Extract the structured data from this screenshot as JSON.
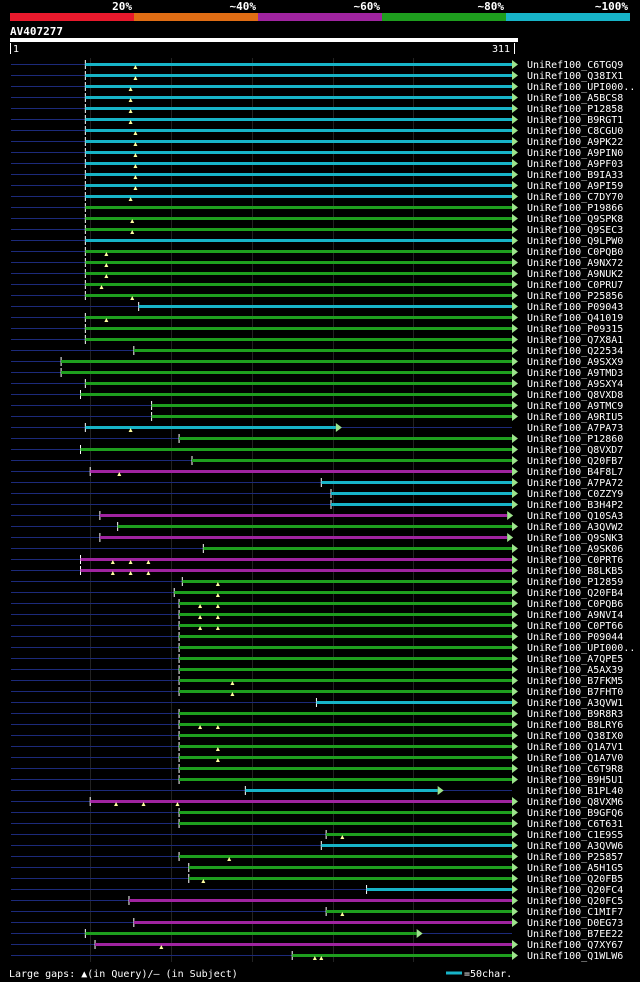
{
  "chart_data": {
    "type": "alignment-overview",
    "query_id": "AV407277",
    "query_start": "1",
    "query_end": "311",
    "query_length": 311,
    "legend": [
      {
        "label": "20%",
        "color": "#e8192c"
      },
      {
        "label": "~40%",
        "color": "#e06d14"
      },
      {
        "label": "~60%",
        "color": "#a024a0"
      },
      {
        "label": "~80%",
        "color": "#1e9e1e"
      },
      {
        "label": "~100%",
        "color": "#17b4c8"
      }
    ],
    "colors": {
      "background": "#000000",
      "text": "#ffffff",
      "subject_line": "#1c2a7a",
      "grid": "#222222",
      "arrow": "#9de48c",
      "gap": "#ffffa0",
      "scale_fill": "#ffffff"
    },
    "footer": {
      "text": "Large gaps: ▲(in Query)/— (in Subject)",
      "scale_label": "=50char.",
      "scale_color": "#17b4c8"
    },
    "hits": [
      {
        "id": "UniRef100_C6TGQ9",
        "start": 47,
        "end": 311,
        "color": "#17b4c8",
        "gaps": [
          78
        ]
      },
      {
        "id": "UniRef100_Q38IX1",
        "start": 47,
        "end": 311,
        "color": "#17b4c8",
        "gaps": [
          78
        ]
      },
      {
        "id": "UniRef100_UPI000..",
        "start": 47,
        "end": 311,
        "color": "#17b4c8",
        "gaps": [
          75
        ]
      },
      {
        "id": "UniRef100_A5BCS8",
        "start": 47,
        "end": 311,
        "color": "#17b4c8",
        "gaps": [
          75
        ]
      },
      {
        "id": "UniRef100_P12858",
        "start": 47,
        "end": 311,
        "color": "#17b4c8",
        "gaps": [
          75
        ]
      },
      {
        "id": "UniRef100_B9RGT1",
        "start": 47,
        "end": 311,
        "color": "#17b4c8",
        "gaps": [
          75
        ]
      },
      {
        "id": "UniRef100_C8CGU0",
        "start": 47,
        "end": 311,
        "color": "#17b4c8",
        "gaps": [
          78
        ]
      },
      {
        "id": "UniRef100_A9PK22",
        "start": 47,
        "end": 311,
        "color": "#17b4c8",
        "gaps": [
          78
        ]
      },
      {
        "id": "UniRef100_A9PIN0",
        "start": 47,
        "end": 311,
        "color": "#17b4c8",
        "gaps": [
          78
        ]
      },
      {
        "id": "UniRef100_A9PF03",
        "start": 47,
        "end": 311,
        "color": "#17b4c8",
        "gaps": [
          78
        ]
      },
      {
        "id": "UniRef100_B9IA33",
        "start": 47,
        "end": 311,
        "color": "#17b4c8",
        "gaps": [
          78
        ]
      },
      {
        "id": "UniRef100_A9PI59",
        "start": 47,
        "end": 311,
        "color": "#17b4c8",
        "gaps": [
          78
        ]
      },
      {
        "id": "UniRef100_C7DY70",
        "start": 47,
        "end": 311,
        "color": "#17b4c8",
        "gaps": [
          75
        ]
      },
      {
        "id": "UniRef100_P19866",
        "start": 47,
        "end": 311,
        "color": "#1e9e1e",
        "gaps": []
      },
      {
        "id": "UniRef100_Q9SPK8",
        "start": 47,
        "end": 311,
        "color": "#1e9e1e",
        "gaps": [
          76
        ]
      },
      {
        "id": "UniRef100_Q9SEC3",
        "start": 47,
        "end": 311,
        "color": "#1e9e1e",
        "gaps": [
          76
        ]
      },
      {
        "id": "UniRef100_Q9LPW0",
        "start": 47,
        "end": 311,
        "color": "#17b4c8",
        "gaps": []
      },
      {
        "id": "UniRef100_C0PQB0",
        "start": 47,
        "end": 311,
        "color": "#1e9e1e",
        "gaps": [
          60
        ]
      },
      {
        "id": "UniRef100_A9NX72",
        "start": 47,
        "end": 311,
        "color": "#1e9e1e",
        "gaps": [
          60
        ]
      },
      {
        "id": "UniRef100_A9NUK2",
        "start": 47,
        "end": 311,
        "color": "#1e9e1e",
        "gaps": [
          60
        ]
      },
      {
        "id": "UniRef100_C0PRU7",
        "start": 47,
        "end": 311,
        "color": "#1e9e1e",
        "gaps": [
          57
        ]
      },
      {
        "id": "UniRef100_P25856",
        "start": 47,
        "end": 311,
        "color": "#1e9e1e",
        "gaps": [
          76
        ]
      },
      {
        "id": "UniRef100_P09043",
        "start": 80,
        "end": 311,
        "color": "#17b4c8",
        "gaps": []
      },
      {
        "id": "UniRef100_Q41019",
        "start": 47,
        "end": 311,
        "color": "#1e9e1e",
        "gaps": [
          60
        ]
      },
      {
        "id": "UniRef100_P09315",
        "start": 47,
        "end": 311,
        "color": "#1e9e1e",
        "gaps": []
      },
      {
        "id": "UniRef100_Q7X8A1",
        "start": 47,
        "end": 311,
        "color": "#1e9e1e",
        "gaps": []
      },
      {
        "id": "UniRef100_Q22534",
        "start": 77,
        "end": 311,
        "color": "#1e9e1e",
        "gaps": []
      },
      {
        "id": "UniRef100_A9SXX9",
        "start": 32,
        "end": 311,
        "color": "#1e9e1e",
        "gaps": []
      },
      {
        "id": "UniRef100_A9TMD3",
        "start": 32,
        "end": 311,
        "color": "#1e9e1e",
        "gaps": []
      },
      {
        "id": "UniRef100_A9SXY4",
        "start": 47,
        "end": 311,
        "color": "#1e9e1e",
        "gaps": []
      },
      {
        "id": "UniRef100_Q8VXD8",
        "start": 44,
        "end": 311,
        "color": "#1e9e1e",
        "gaps": []
      },
      {
        "id": "UniRef100_A9TMC9",
        "start": 88,
        "end": 311,
        "color": "#1e9e1e",
        "gaps": []
      },
      {
        "id": "UniRef100_A9RIU5",
        "start": 88,
        "end": 311,
        "color": "#1e9e1e",
        "gaps": []
      },
      {
        "id": "UniRef100_A7PA73",
        "start": 47,
        "end": 202,
        "color": "#17b4c8",
        "gaps": [
          75
        ]
      },
      {
        "id": "UniRef100_P12860",
        "start": 105,
        "end": 311,
        "color": "#1e9e1e",
        "gaps": []
      },
      {
        "id": "UniRef100_Q8VXD7",
        "start": 44,
        "end": 311,
        "color": "#1e9e1e",
        "gaps": []
      },
      {
        "id": "UniRef100_Q20FB7",
        "start": 113,
        "end": 311,
        "color": "#1e9e1e",
        "gaps": []
      },
      {
        "id": "UniRef100_B4F8L7",
        "start": 50,
        "end": 311,
        "color": "#a024a0",
        "gaps": [
          68
        ]
      },
      {
        "id": "UniRef100_A7PA72",
        "start": 193,
        "end": 311,
        "color": "#17b4c8",
        "gaps": []
      },
      {
        "id": "UniRef100_C0ZZY9",
        "start": 199,
        "end": 311,
        "color": "#17b4c8",
        "gaps": []
      },
      {
        "id": "UniRef100_B3H4P2",
        "start": 199,
        "end": 311,
        "color": "#17b4c8",
        "gaps": []
      },
      {
        "id": "UniRef100_Q10SA3",
        "start": 56,
        "end": 308,
        "color": "#a024a0",
        "gaps": []
      },
      {
        "id": "UniRef100_A3QVW2",
        "start": 67,
        "end": 311,
        "color": "#1e9e1e",
        "gaps": []
      },
      {
        "id": "UniRef100_Q9SNK3",
        "start": 56,
        "end": 308,
        "color": "#a024a0",
        "gaps": []
      },
      {
        "id": "UniRef100_A9SK06",
        "start": 120,
        "end": 311,
        "color": "#1e9e1e",
        "gaps": []
      },
      {
        "id": "UniRef100_C0PRT6",
        "start": 44,
        "end": 311,
        "color": "#a024a0",
        "gaps": [
          64,
          75,
          86
        ]
      },
      {
        "id": "UniRef100_B8LKB5",
        "start": 44,
        "end": 311,
        "color": "#a024a0",
        "gaps": [
          64,
          75,
          86
        ]
      },
      {
        "id": "UniRef100_P12859",
        "start": 107,
        "end": 311,
        "color": "#1e9e1e",
        "gaps": [
          129
        ]
      },
      {
        "id": "UniRef100_Q20FB4",
        "start": 102,
        "end": 311,
        "color": "#1e9e1e",
        "gaps": [
          129
        ]
      },
      {
        "id": "UniRef100_C0PQB6",
        "start": 105,
        "end": 311,
        "color": "#1e9e1e",
        "gaps": [
          118,
          129
        ]
      },
      {
        "id": "UniRef100_A9NVI4",
        "start": 105,
        "end": 311,
        "color": "#1e9e1e",
        "gaps": [
          118,
          129
        ]
      },
      {
        "id": "UniRef100_C0PT66",
        "start": 105,
        "end": 311,
        "color": "#1e9e1e",
        "gaps": [
          118,
          129
        ]
      },
      {
        "id": "UniRef100_P09044",
        "start": 105,
        "end": 311,
        "color": "#1e9e1e",
        "gaps": []
      },
      {
        "id": "UniRef100_UPI000..",
        "start": 105,
        "end": 311,
        "color": "#1e9e1e",
        "gaps": []
      },
      {
        "id": "UniRef100_A7QPE5",
        "start": 105,
        "end": 311,
        "color": "#1e9e1e",
        "gaps": []
      },
      {
        "id": "UniRef100_A5AX39",
        "start": 105,
        "end": 311,
        "color": "#1e9e1e",
        "gaps": []
      },
      {
        "id": "UniRef100_B7FKM5",
        "start": 105,
        "end": 311,
        "color": "#1e9e1e",
        "gaps": [
          138
        ]
      },
      {
        "id": "UniRef100_B7FHT0",
        "start": 105,
        "end": 311,
        "color": "#1e9e1e",
        "gaps": [
          138
        ]
      },
      {
        "id": "UniRef100_A3QVW1",
        "start": 190,
        "end": 311,
        "color": "#17b4c8",
        "gaps": []
      },
      {
        "id": "UniRef100_B9R8R3",
        "start": 105,
        "end": 311,
        "color": "#1e9e1e",
        "gaps": []
      },
      {
        "id": "UniRef100_B8LRY6",
        "start": 105,
        "end": 311,
        "color": "#1e9e1e",
        "gaps": [
          118,
          129
        ]
      },
      {
        "id": "UniRef100_Q38IX0",
        "start": 105,
        "end": 311,
        "color": "#1e9e1e",
        "gaps": []
      },
      {
        "id": "UniRef100_Q1A7V1",
        "start": 105,
        "end": 311,
        "color": "#1e9e1e",
        "gaps": [
          129
        ]
      },
      {
        "id": "UniRef100_Q1A7V0",
        "start": 105,
        "end": 311,
        "color": "#1e9e1e",
        "gaps": [
          129
        ]
      },
      {
        "id": "UniRef100_C6T9R8",
        "start": 105,
        "end": 311,
        "color": "#1e9e1e",
        "gaps": []
      },
      {
        "id": "UniRef100_B9H5U1",
        "start": 105,
        "end": 311,
        "color": "#1e9e1e",
        "gaps": []
      },
      {
        "id": "UniRef100_B1PL40",
        "start": 146,
        "end": 265,
        "color": "#17b4c8",
        "gaps": []
      },
      {
        "id": "UniRef100_Q8VXM6",
        "start": 50,
        "end": 311,
        "color": "#a024a0",
        "gaps": [
          66,
          83,
          104
        ]
      },
      {
        "id": "UniRef100_B9GFQ6",
        "start": 105,
        "end": 311,
        "color": "#1e9e1e",
        "gaps": []
      },
      {
        "id": "UniRef100_C6T631",
        "start": 105,
        "end": 311,
        "color": "#1e9e1e",
        "gaps": []
      },
      {
        "id": "UniRef100_C1E9S5",
        "start": 196,
        "end": 311,
        "color": "#1e9e1e",
        "gaps": [
          206
        ]
      },
      {
        "id": "UniRef100_A3QVW6",
        "start": 193,
        "end": 311,
        "color": "#17b4c8",
        "gaps": []
      },
      {
        "id": "UniRef100_P25857",
        "start": 105,
        "end": 311,
        "color": "#1e9e1e",
        "gaps": [
          136
        ]
      },
      {
        "id": "UniRef100_A5H1G5",
        "start": 111,
        "end": 311,
        "color": "#1e9e1e",
        "gaps": []
      },
      {
        "id": "UniRef100_Q20FB5",
        "start": 111,
        "end": 311,
        "color": "#1e9e1e",
        "gaps": [
          120
        ]
      },
      {
        "id": "UniRef100_Q20FC4",
        "start": 221,
        "end": 311,
        "color": "#17b4c8",
        "gaps": []
      },
      {
        "id": "UniRef100_Q20FC5",
        "start": 74,
        "end": 311,
        "color": "#a024a0",
        "gaps": []
      },
      {
        "id": "UniRef100_C1MIF7",
        "start": 196,
        "end": 311,
        "color": "#1e9e1e",
        "gaps": [
          206
        ]
      },
      {
        "id": "UniRef100_D0EG73",
        "start": 77,
        "end": 311,
        "color": "#a024a0",
        "gaps": []
      },
      {
        "id": "UniRef100_B7EE22",
        "start": 47,
        "end": 252,
        "color": "#1e9e1e",
        "gaps": []
      },
      {
        "id": "UniRef100_Q7XY67",
        "start": 53,
        "end": 311,
        "color": "#a024a0",
        "gaps": [
          94
        ]
      },
      {
        "id": "UniRef100_Q1WLW6",
        "start": 175,
        "end": 311,
        "color": "#1e9e1e",
        "gaps": [
          189,
          193
        ]
      }
    ]
  }
}
